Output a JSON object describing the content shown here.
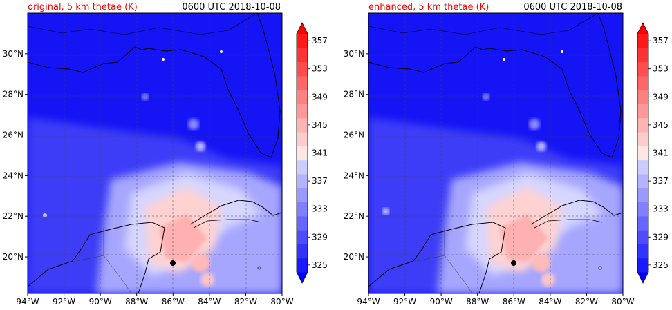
{
  "chart_data": [
    {
      "type": "heatmap",
      "title_left": "original, 5 km thetae (K)",
      "title_right": "0600 UTC 2018-10-08",
      "x_ticks": [
        "94°W",
        "92°W",
        "90°W",
        "88°W",
        "86°W",
        "84°W",
        "82°W",
        "80°W"
      ],
      "y_ticks": [
        "20°N",
        "22°N",
        "24°N",
        "26°N",
        "28°N",
        "30°N"
      ],
      "xlim": [
        -94,
        -80
      ],
      "ylim": [
        18.2,
        32
      ],
      "colorbar": {
        "labels": [
          "325",
          "329",
          "333",
          "337",
          "341",
          "345",
          "349",
          "353",
          "357"
        ],
        "levels": [
          325,
          327,
          329,
          331,
          333,
          335,
          337,
          339,
          341,
          343,
          345,
          347,
          349,
          351,
          353,
          355,
          357,
          359
        ],
        "extend": "both"
      },
      "marker": {
        "lon": -86.0,
        "lat": 19.6
      }
    },
    {
      "type": "heatmap",
      "title_left": "enhanced, 5 km thetae (K)",
      "title_right": "0600 UTC 2018-10-08",
      "x_ticks": [
        "94°W",
        "92°W",
        "90°W",
        "88°W",
        "86°W",
        "84°W",
        "82°W",
        "80°W"
      ],
      "y_ticks": [
        "20°N",
        "22°N",
        "24°N",
        "26°N",
        "28°N",
        "30°N"
      ],
      "xlim": [
        -94,
        -80
      ],
      "ylim": [
        18.2,
        32
      ],
      "colorbar": {
        "labels": [
          "325",
          "329",
          "333",
          "337",
          "341",
          "345",
          "349",
          "353",
          "357"
        ],
        "levels": [
          325,
          327,
          329,
          331,
          333,
          335,
          337,
          339,
          341,
          343,
          345,
          347,
          349,
          351,
          353,
          355,
          357,
          359
        ],
        "extend": "both"
      },
      "marker": {
        "lon": -86.0,
        "lat": 19.6
      }
    }
  ],
  "colors": {
    "title_left": "#ff0000",
    "land_line": "#000000",
    "grid_line": "#333333",
    "colormap": [
      "#0000ff",
      "#1a1aff",
      "#3333ff",
      "#4d4dff",
      "#6666ff",
      "#8080ff",
      "#9999ff",
      "#b3b3ff",
      "#ccccff",
      "#e6e6ff",
      "#ffe6e6",
      "#ffcccc",
      "#ffb3b3",
      "#ff9999",
      "#ff8080",
      "#ff6666",
      "#ff4d4d",
      "#ff3333",
      "#ff1a1a",
      "#ff0000"
    ]
  }
}
